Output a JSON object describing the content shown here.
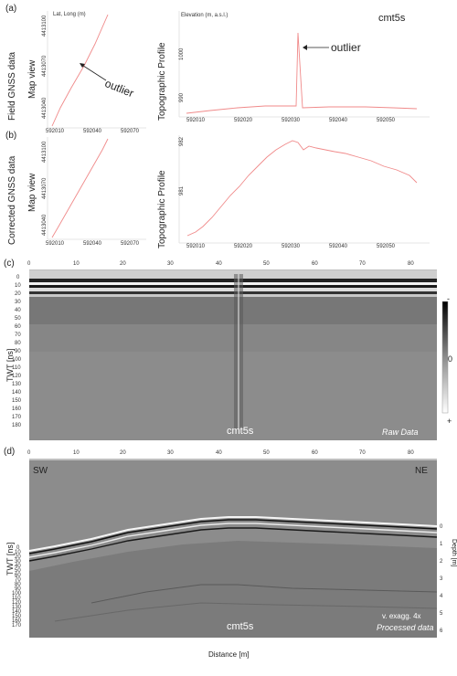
{
  "panels": {
    "a": {
      "letter": "(a)",
      "row_label": "Field GNSS data",
      "map_label": "Map view",
      "topo_label": "Topographic Profile",
      "map_axis_title": "Lat, Long (m)",
      "topo_axis_title": "Elevation (m, a.s.l.)",
      "site": "cmt5s",
      "outlier_map": "outlier",
      "outlier_topo": "outlier",
      "map_y_ticks": [
        "4413100",
        "4413070",
        "4413040"
      ],
      "map_x_ticks": [
        "592010",
        "592040",
        "592070"
      ],
      "topo_y_ticks": [
        "1000",
        "990"
      ],
      "topo_x_ticks": [
        "592010",
        "592020",
        "592030",
        "592040",
        "592050"
      ]
    },
    "b": {
      "letter": "(b)",
      "row_label": "Corrected GNSS data",
      "map_label": "Map view",
      "topo_label": "Topographic Profile",
      "map_y_ticks": [
        "4413100",
        "4413070",
        "4413040"
      ],
      "map_x_ticks": [
        "592010",
        "592040",
        "592070"
      ],
      "topo_y_ticks": [
        "982",
        "981"
      ],
      "topo_x_ticks": [
        "592010",
        "592020",
        "592030",
        "592040",
        "592050"
      ]
    },
    "c": {
      "letter": "(c)",
      "x_ticks": [
        "0",
        "10",
        "20",
        "30",
        "40",
        "50",
        "60",
        "70",
        "80"
      ],
      "y_title": "TWT [ns]",
      "y_ticks": [
        "0",
        "10",
        "20",
        "30",
        "40",
        "50",
        "60",
        "70",
        "80",
        "90",
        "100",
        "110",
        "120",
        "130",
        "140",
        "150",
        "160",
        "170",
        "180"
      ],
      "site": "cmt5s",
      "caption": "Raw Data",
      "scale_top": "-",
      "scale_mid": "0",
      "scale_bottom": "+"
    },
    "d": {
      "letter": "(d)",
      "x_ticks": [
        "0",
        "10",
        "20",
        "30",
        "40",
        "50",
        "60",
        "70",
        "80"
      ],
      "y_title": "TWT [ns]",
      "y_ticks": [
        "0",
        "10",
        "20",
        "30",
        "40",
        "50",
        "60",
        "70",
        "80",
        "90",
        "100",
        "110",
        "120",
        "130",
        "140",
        "150",
        "160",
        "170"
      ],
      "depth_title": "Depth [m]",
      "depth_ticks": [
        "0",
        "1",
        "2",
        "3",
        "4",
        "5",
        "6"
      ],
      "left_dir": "SW",
      "right_dir": "NE",
      "site": "cmt5s",
      "exag": "v. exagg. 4x",
      "caption": "Processed data",
      "x_title": "Distance [m]"
    }
  },
  "colors": {
    "track": "#f08a8a",
    "radar_bg": "#8c8c8c"
  }
}
